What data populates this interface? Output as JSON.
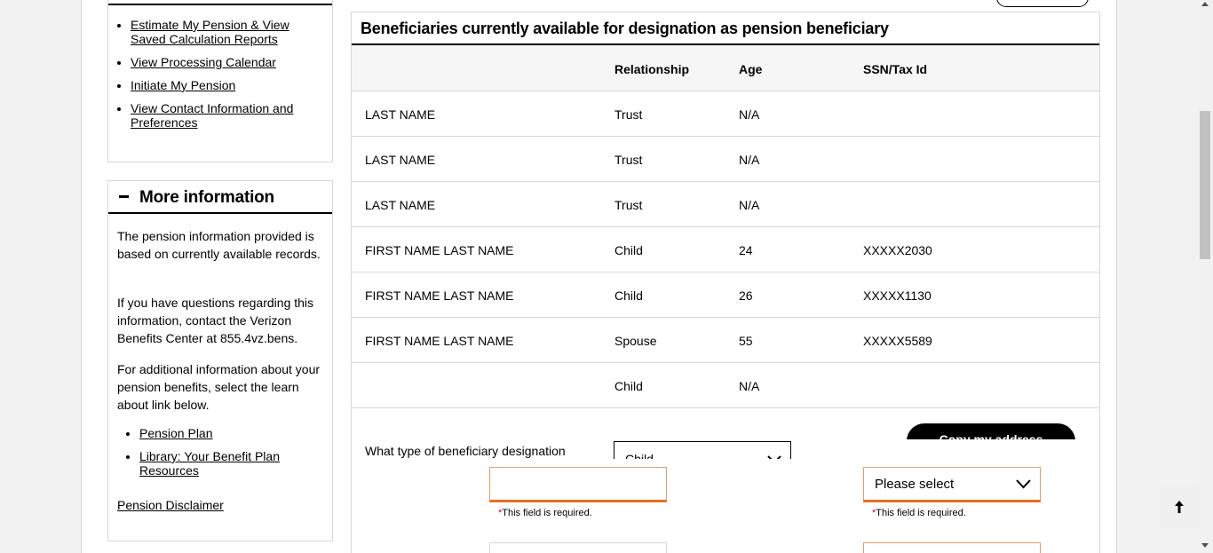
{
  "left_links": [
    "Estimate My Pension & View Saved Calculation Reports",
    "View Processing Calendar",
    "Initiate My Pension",
    "View Contact Information and Preferences"
  ],
  "more_info": {
    "title": "More information",
    "para1": "The pension information provided is based on currently available records.",
    "para2": "If you have questions regarding this information, contact the Verizon Benefits Center at 855.4vz.bens.",
    "para3": "For additional information about your pension benefits, select the learn about link below.",
    "links": [
      "Pension Plan",
      "Library: Your Benefit Plan Resources"
    ],
    "disclaimer": "Pension Disclaimer"
  },
  "beneficiaries": {
    "title": "Beneficiaries currently available for designation as pension beneficiary",
    "columns": [
      "",
      "Relationship",
      "Age",
      "SSN/Tax Id"
    ],
    "rows": [
      {
        "name": "LAST NAME",
        "relationship": "Trust",
        "age": "N/A",
        "ssn": ""
      },
      {
        "name": "LAST NAME",
        "relationship": "Trust",
        "age": "N/A",
        "ssn": ""
      },
      {
        "name": "LAST NAME",
        "relationship": "Trust",
        "age": "N/A",
        "ssn": ""
      },
      {
        "name": "FIRST NAME LAST NAME",
        "relationship": "Child",
        "age": "24",
        "ssn": "XXXXX2030"
      },
      {
        "name": "FIRST NAME LAST NAME",
        "relationship": "Child",
        "age": "26",
        "ssn": "XXXXX1130"
      },
      {
        "name": "FIRST NAME LAST NAME",
        "relationship": "Spouse",
        "age": "55",
        "ssn": "XXXXX5589"
      },
      {
        "name": "",
        "relationship": "Child",
        "age": "N/A",
        "ssn": ""
      }
    ]
  },
  "form": {
    "question": "What type of beneficiary designation",
    "designation_value": "Child",
    "copy_button": "Copy my address",
    "select_value": "Please select",
    "required_text": "This field is required.",
    "required_star": "*"
  },
  "colors": {
    "accent_orange": "#e86f1f",
    "required_red": "#e3001b"
  }
}
